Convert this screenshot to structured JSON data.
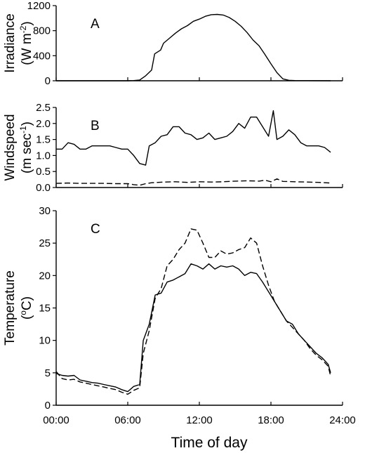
{
  "x_axis": {
    "label": "Time of day",
    "ticks": [
      "00:00",
      "06:00",
      "12:00",
      "18:00",
      "24:00"
    ],
    "range": [
      0,
      24
    ]
  },
  "chart_data": [
    {
      "type": "line",
      "panel_label": "A",
      "ylabel_line1": "Irradiance",
      "ylabel_line2_prefix": "(W m",
      "ylabel_line2_sup": "-2",
      "ylabel_line2_suffix": ")",
      "ylim": [
        0,
        1200
      ],
      "yticks": [
        0,
        400,
        800,
        1200
      ],
      "grid": false,
      "series": [
        {
          "style": "solid",
          "points": [
            [
              0,
              0
            ],
            [
              6,
              0
            ],
            [
              6.5,
              3
            ],
            [
              7,
              12
            ],
            [
              7.5,
              80
            ],
            [
              8,
              170
            ],
            [
              8.25,
              430
            ],
            [
              8.75,
              490
            ],
            [
              9,
              600
            ],
            [
              9.5,
              680
            ],
            [
              10,
              760
            ],
            [
              10.5,
              830
            ],
            [
              11,
              880
            ],
            [
              11.5,
              950
            ],
            [
              12,
              985
            ],
            [
              12.5,
              1030
            ],
            [
              13,
              1055
            ],
            [
              13.5,
              1060
            ],
            [
              14,
              1050
            ],
            [
              14.5,
              1010
            ],
            [
              15,
              950
            ],
            [
              15.5,
              870
            ],
            [
              16,
              770
            ],
            [
              16.5,
              650
            ],
            [
              17,
              560
            ],
            [
              17.5,
              420
            ],
            [
              18,
              270
            ],
            [
              18.5,
              130
            ],
            [
              19,
              30
            ],
            [
              19.5,
              8
            ],
            [
              20,
              3
            ],
            [
              23,
              0
            ]
          ]
        }
      ]
    },
    {
      "type": "line",
      "panel_label": "B",
      "ylabel_line1": "Windspeed",
      "ylabel_line2_prefix": "(m sec",
      "ylabel_line2_sup": "-1",
      "ylabel_line2_suffix": ")",
      "ylim": [
        0,
        2.5
      ],
      "yticks": [
        0.0,
        0.5,
        1.0,
        1.5,
        2.0,
        2.5
      ],
      "grid": false,
      "series": [
        {
          "style": "solid",
          "points": [
            [
              0,
              1.2
            ],
            [
              0.5,
              1.2
            ],
            [
              1,
              1.4
            ],
            [
              1.5,
              1.35
            ],
            [
              2,
              1.2
            ],
            [
              2.5,
              1.2
            ],
            [
              3,
              1.3
            ],
            [
              3.5,
              1.3
            ],
            [
              4,
              1.3
            ],
            [
              4.5,
              1.3
            ],
            [
              5,
              1.25
            ],
            [
              5.5,
              1.2
            ],
            [
              6,
              1.2
            ],
            [
              6.5,
              1.0
            ],
            [
              7,
              0.75
            ],
            [
              7.5,
              0.7
            ],
            [
              7.8,
              1.3
            ],
            [
              8.3,
              1.4
            ],
            [
              8.8,
              1.6
            ],
            [
              9.3,
              1.65
            ],
            [
              9.8,
              1.9
            ],
            [
              10.3,
              1.9
            ],
            [
              10.8,
              1.7
            ],
            [
              11.3,
              1.65
            ],
            [
              11.8,
              1.5
            ],
            [
              12.3,
              1.55
            ],
            [
              12.8,
              1.7
            ],
            [
              13.3,
              1.5
            ],
            [
              13.8,
              1.55
            ],
            [
              14.3,
              1.6
            ],
            [
              14.8,
              1.75
            ],
            [
              15.3,
              2.0
            ],
            [
              15.8,
              1.85
            ],
            [
              16.3,
              2.2
            ],
            [
              16.8,
              2.2
            ],
            [
              17.3,
              1.9
            ],
            [
              17.8,
              1.6
            ],
            [
              18.2,
              2.4
            ],
            [
              18.5,
              1.5
            ],
            [
              19,
              1.6
            ],
            [
              19.5,
              1.8
            ],
            [
              20,
              1.65
            ],
            [
              20.5,
              1.4
            ],
            [
              21,
              1.3
            ],
            [
              21.5,
              1.3
            ],
            [
              22,
              1.3
            ],
            [
              22.5,
              1.25
            ],
            [
              23,
              1.1
            ]
          ]
        },
        {
          "style": "dashed",
          "points": [
            [
              0,
              0.13
            ],
            [
              1,
              0.14
            ],
            [
              2,
              0.13
            ],
            [
              3,
              0.13
            ],
            [
              4,
              0.13
            ],
            [
              5,
              0.12
            ],
            [
              6,
              0.12
            ],
            [
              6.5,
              0.09
            ],
            [
              7,
              0.07
            ],
            [
              7.5,
              0.12
            ],
            [
              8,
              0.15
            ],
            [
              9,
              0.17
            ],
            [
              10,
              0.18
            ],
            [
              11,
              0.16
            ],
            [
              12,
              0.18
            ],
            [
              13,
              0.17
            ],
            [
              14,
              0.18
            ],
            [
              15,
              0.2
            ],
            [
              16,
              0.21
            ],
            [
              17,
              0.2
            ],
            [
              17.5,
              0.23
            ],
            [
              18,
              0.18
            ],
            [
              18.5,
              0.27
            ],
            [
              19,
              0.19
            ],
            [
              20,
              0.18
            ],
            [
              21,
              0.17
            ],
            [
              22,
              0.16
            ],
            [
              23,
              0.14
            ]
          ]
        }
      ]
    },
    {
      "type": "line",
      "panel_label": "C",
      "ylabel_line1": "Temperature",
      "ylabel_line2_prefix": "(",
      "ylabel_line2_sup": "o",
      "ylabel_line2_suffix": "C)",
      "ylim": [
        0,
        30
      ],
      "yticks": [
        0,
        5,
        10,
        15,
        20,
        25,
        30
      ],
      "grid": false,
      "series": [
        {
          "style": "solid",
          "points": [
            [
              0,
              4.9
            ],
            [
              0.5,
              4.6
            ],
            [
              1,
              4.5
            ],
            [
              1.5,
              4.6
            ],
            [
              2,
              3.9
            ],
            [
              2.5,
              3.7
            ],
            [
              3,
              3.5
            ],
            [
              3.5,
              3.4
            ],
            [
              4,
              3.2
            ],
            [
              4.5,
              3.0
            ],
            [
              5,
              2.8
            ],
            [
              5.5,
              2.4
            ],
            [
              6,
              2.1
            ],
            [
              6.5,
              2.9
            ],
            [
              7,
              3.2
            ],
            [
              7.3,
              10.0
            ],
            [
              7.8,
              12.5
            ],
            [
              8.3,
              17.0
            ],
            [
              8.8,
              17.3
            ],
            [
              9.3,
              19.0
            ],
            [
              9.8,
              19.3
            ],
            [
              10.3,
              19.8
            ],
            [
              10.8,
              20.3
            ],
            [
              11.3,
              21.8
            ],
            [
              11.8,
              21.5
            ],
            [
              12.3,
              21.0
            ],
            [
              12.8,
              21.8
            ],
            [
              13.3,
              21.0
            ],
            [
              13.8,
              21.5
            ],
            [
              14.3,
              21.3
            ],
            [
              14.8,
              21.5
            ],
            [
              15.3,
              21.0
            ],
            [
              15.8,
              20.0
            ],
            [
              16.3,
              20.5
            ],
            [
              16.8,
              20.3
            ],
            [
              17.3,
              19.0
            ],
            [
              17.8,
              17.5
            ],
            [
              18.3,
              16.0
            ],
            [
              18.8,
              14.5
            ],
            [
              19.3,
              13.0
            ],
            [
              19.8,
              12.5
            ],
            [
              20.3,
              11.0
            ],
            [
              20.8,
              10.0
            ],
            [
              21.3,
              9.0
            ],
            [
              21.8,
              8.0
            ],
            [
              22.3,
              7.3
            ],
            [
              22.8,
              6.3
            ],
            [
              23,
              5.0
            ]
          ]
        },
        {
          "style": "dashed",
          "points": [
            [
              0,
              5.2
            ],
            [
              0.5,
              4.1
            ],
            [
              1,
              3.9
            ],
            [
              1.5,
              4.0
            ],
            [
              2,
              3.6
            ],
            [
              2.5,
              3.4
            ],
            [
              3,
              3.2
            ],
            [
              3.5,
              3.0
            ],
            [
              4,
              2.8
            ],
            [
              4.5,
              2.6
            ],
            [
              5,
              2.4
            ],
            [
              5.5,
              2.0
            ],
            [
              6,
              1.7
            ],
            [
              6.5,
              2.3
            ],
            [
              7,
              2.7
            ],
            [
              7.3,
              8.0
            ],
            [
              7.8,
              11.5
            ],
            [
              8.3,
              16.5
            ],
            [
              8.8,
              18.0
            ],
            [
              9.3,
              21.5
            ],
            [
              9.8,
              22.5
            ],
            [
              10.3,
              24.0
            ],
            [
              10.8,
              25.0
            ],
            [
              11.3,
              27.2
            ],
            [
              11.8,
              27.0
            ],
            [
              12.3,
              25.0
            ],
            [
              12.8,
              22.8
            ],
            [
              13.3,
              22.8
            ],
            [
              13.8,
              23.8
            ],
            [
              14.3,
              23.3
            ],
            [
              14.8,
              23.5
            ],
            [
              15.3,
              24.0
            ],
            [
              15.8,
              24.3
            ],
            [
              16.3,
              25.8
            ],
            [
              16.8,
              25.0
            ],
            [
              17.3,
              21.5
            ],
            [
              17.8,
              18.5
            ],
            [
              18.3,
              16.0
            ],
            [
              18.8,
              14.5
            ],
            [
              19.3,
              13.0
            ],
            [
              19.8,
              12.0
            ],
            [
              20.3,
              11.0
            ],
            [
              20.8,
              10.0
            ],
            [
              21.3,
              8.7
            ],
            [
              21.8,
              7.7
            ],
            [
              22.3,
              7.0
            ],
            [
              22.8,
              6.0
            ],
            [
              23,
              4.5
            ]
          ]
        }
      ]
    }
  ]
}
